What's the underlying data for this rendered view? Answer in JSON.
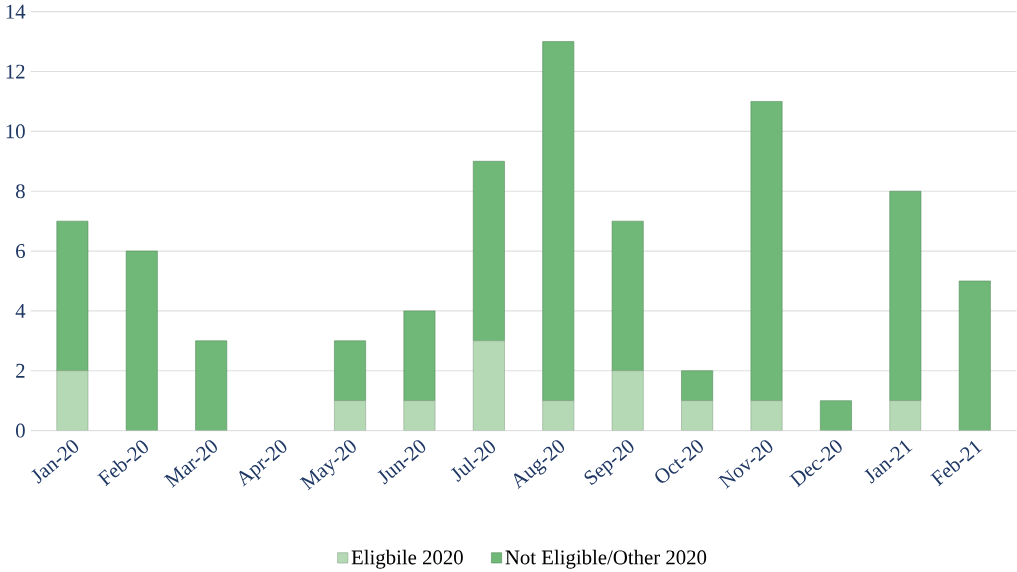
{
  "chart_data": {
    "type": "bar",
    "stacked": true,
    "categories": [
      "Jan-20",
      "Feb-20",
      "Mar-20",
      "Apr-20",
      "May-20",
      "Jun-20",
      "Jul-20",
      "Aug-20",
      "Sep-20",
      "Oct-20",
      "Nov-20",
      "Dec-20",
      "Jan-21",
      "Feb-21"
    ],
    "series": [
      {
        "name": "Eligbile 2020",
        "color": "#b5d9b5",
        "values": [
          2,
          0,
          0,
          0,
          1,
          1,
          3,
          1,
          2,
          1,
          1,
          0,
          1,
          0
        ]
      },
      {
        "name": "Not Eligible/Other 2020",
        "color": "#6fb878",
        "values": [
          5,
          6,
          3,
          0,
          2,
          3,
          6,
          12,
          5,
          1,
          10,
          1,
          7,
          5
        ]
      }
    ],
    "ylim": [
      0,
      14
    ],
    "yticks": [
      0,
      2,
      4,
      6,
      8,
      10,
      12,
      14
    ],
    "grid": "y",
    "legend": "bottom"
  }
}
